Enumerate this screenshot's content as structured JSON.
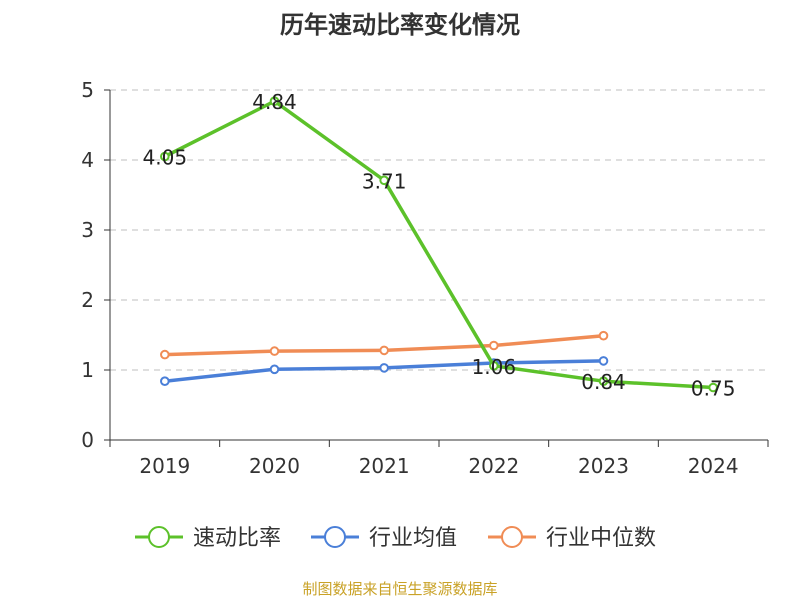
{
  "chart_data": {
    "type": "line",
    "title": "历年速动比率变化情况",
    "categories": [
      "2019",
      "2020",
      "2021",
      "2022",
      "2023",
      "2024"
    ],
    "ylim": [
      0,
      5
    ],
    "yticks": [
      0,
      1,
      2,
      3,
      4,
      5
    ],
    "grid": true,
    "legend_position": "bottom",
    "series": [
      {
        "name": "速动比率",
        "color": "#5cc12a",
        "values": [
          4.05,
          4.84,
          3.71,
          1.06,
          0.84,
          0.75
        ],
        "show_labels": true,
        "labels": [
          "4.05",
          "4.84",
          "3.71",
          "1.06",
          "0.84",
          "0.75"
        ]
      },
      {
        "name": "行业均值",
        "color": "#4a7fd8",
        "values": [
          0.84,
          1.01,
          1.03,
          1.1,
          1.13,
          null
        ],
        "show_labels": false
      },
      {
        "name": "行业中位数",
        "color": "#f08c55",
        "values": [
          1.22,
          1.27,
          1.28,
          1.35,
          1.49,
          null
        ],
        "show_labels": false
      }
    ]
  },
  "footer": {
    "source": "制图数据来自恒生聚源数据库",
    "source_color": "#c9a227"
  }
}
